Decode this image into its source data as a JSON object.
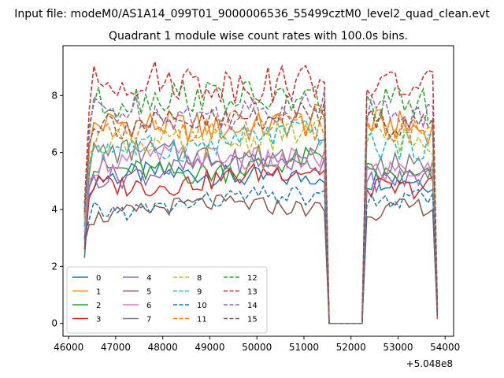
{
  "figure": {
    "suptitle": "Input file: modeM0/AS1A14_099T01_9000006536_55499cztM0_level2_quad_clean.evt",
    "title": "Quadrant 1 module wise count rates with 100.0s bins.",
    "x_offset_label": "+5.048e8"
  },
  "chart_data": {
    "type": "line",
    "title": "Quadrant 1 module wise count rates with 100.0s bins.",
    "xlabel": "",
    "ylabel": "",
    "xlim": [
      45880,
      54180
    ],
    "ylim": [
      -0.45,
      9.75
    ],
    "x_ticks": [
      46000,
      47000,
      48000,
      49000,
      50000,
      51000,
      52000,
      53000,
      54000
    ],
    "x_tick_labels": [
      "46000",
      "47000",
      "48000",
      "49000",
      "50000",
      "51000",
      "52000",
      "53000",
      "54000"
    ],
    "y_ticks": [
      0,
      2,
      4,
      6,
      8
    ],
    "y_tick_labels": [
      "0",
      "2",
      "4",
      "6",
      "8"
    ],
    "x_offset": "+5.048e8",
    "grid": false,
    "legend": {
      "placement": "lower-left",
      "columns": 4
    },
    "time_segments": [
      {
        "start": 46336,
        "end": 51536,
        "step": 100
      },
      {
        "start": 51536,
        "end": 52236,
        "step": 100
      },
      {
        "start": 52236,
        "end": 53836,
        "step": 100
      }
    ],
    "series": [
      {
        "name": "0",
        "color": "#1f77b4",
        "dash": "solid",
        "level_a": 5.0,
        "level_b": 5.0,
        "start": 2.3,
        "end": 0.3
      },
      {
        "name": "1",
        "color": "#ff7f0e",
        "dash": "solid",
        "level_a": 6.8,
        "level_b": 6.9,
        "start": 3.7,
        "end": 0.5
      },
      {
        "name": "2",
        "color": "#2ca02c",
        "dash": "solid",
        "level_a": 5.3,
        "level_b": 5.2,
        "start": 3.0,
        "end": 0.4
      },
      {
        "name": "3",
        "color": "#d62728",
        "dash": "solid",
        "level_a": 4.9,
        "level_b": 4.8,
        "start": 2.6,
        "end": 0.3
      },
      {
        "name": "4",
        "color": "#9467bd",
        "dash": "solid",
        "level_a": 5.3,
        "level_b": 5.1,
        "start": 2.9,
        "end": 0.4
      },
      {
        "name": "5",
        "color": "#8c564b",
        "dash": "solid",
        "level_a": 3.85,
        "level_b": 4.0,
        "start": 2.8,
        "end": 0.15
      },
      {
        "name": "6",
        "color": "#e377c2",
        "dash": "solid",
        "level_a": 5.6,
        "level_b": 5.3,
        "start": 3.2,
        "end": 0.4
      },
      {
        "name": "7",
        "color": "#7f7f7f",
        "dash": "solid",
        "level_a": 5.8,
        "level_b": 5.5,
        "start": 3.4,
        "end": 0.4
      },
      {
        "name": "8",
        "color": "#bcbd22",
        "dash": "dashed",
        "level_a": 6.3,
        "level_b": 6.5,
        "start": 3.5,
        "end": 0.45
      },
      {
        "name": "9",
        "color": "#17becf",
        "dash": "dashed",
        "level_a": 6.2,
        "level_b": 6.3,
        "start": 3.4,
        "end": 0.45
      },
      {
        "name": "10",
        "color": "#1f77b4",
        "dash": "dashed",
        "level_a": 4.05,
        "level_b": 4.35,
        "start": 3.0,
        "end": 0.3
      },
      {
        "name": "11",
        "color": "#ff7f0e",
        "dash": "dashed",
        "level_a": 6.6,
        "level_b": 6.8,
        "start": 3.8,
        "end": 0.5
      },
      {
        "name": "12",
        "color": "#2ca02c",
        "dash": "dashed",
        "level_a": 7.7,
        "level_b": 7.6,
        "start": 4.0,
        "end": 0.6
      },
      {
        "name": "13",
        "color": "#d62728",
        "dash": "dashed",
        "level_a": 8.3,
        "level_b": 8.3,
        "start": 4.2,
        "end": 0.6
      },
      {
        "name": "14",
        "color": "#9467bd",
        "dash": "dashed",
        "level_a": 7.3,
        "level_b": 7.4,
        "start": 4.0,
        "end": 0.55
      },
      {
        "name": "15",
        "color": "#8c564b",
        "dash": "dashed",
        "level_a": 7.0,
        "level_b": 7.1,
        "start": 3.9,
        "end": 0.5
      }
    ]
  }
}
